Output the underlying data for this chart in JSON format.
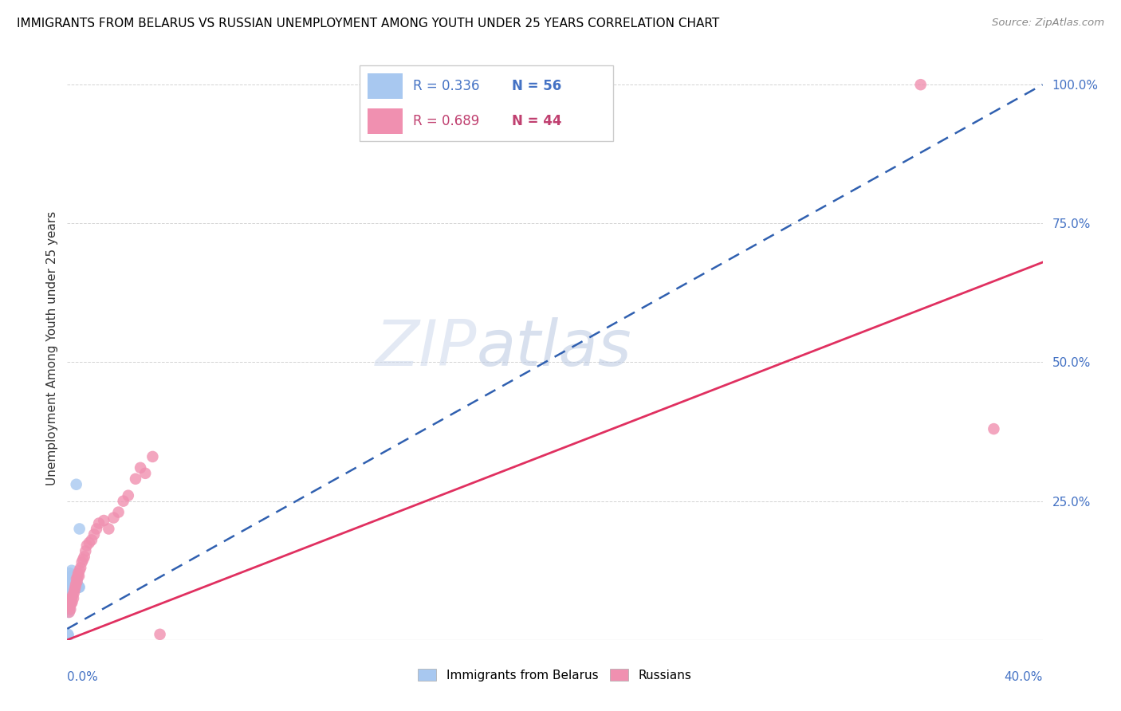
{
  "title": "IMMIGRANTS FROM BELARUS VS RUSSIAN UNEMPLOYMENT AMONG YOUTH UNDER 25 YEARS CORRELATION CHART",
  "source": "Source: ZipAtlas.com",
  "ylabel": "Unemployment Among Youth under 25 years",
  "legend_blue_R": "R = 0.336",
  "legend_blue_N": "N = 56",
  "legend_pink_R": "R = 0.689",
  "legend_pink_N": "N = 44",
  "watermark_zip": "ZIP",
  "watermark_atlas": "atlas",
  "series_blue": {
    "name": "Immigrants from Belarus",
    "color": "#a8c8f0",
    "line_color": "#3060b0",
    "x": [
      0.0008,
      0.001,
      0.001,
      0.0012,
      0.0013,
      0.0015,
      0.0016,
      0.0017,
      0.0018,
      0.0018,
      0.002,
      0.002,
      0.0021,
      0.0022,
      0.0022,
      0.0024,
      0.0024,
      0.0025,
      0.0026,
      0.0027,
      0.0028,
      0.0028,
      0.003,
      0.003,
      0.0031,
      0.0032,
      0.0033,
      0.0034,
      0.0035,
      0.0036,
      0.0037,
      0.0038,
      0.004,
      0.004,
      0.0042,
      0.0043,
      0.0045,
      0.0046,
      0.0048,
      0.005,
      0.0005,
      0.0006,
      0.0007,
      0.0007,
      0.0008,
      0.0009,
      0.0009,
      0.001,
      0.0011,
      0.0012,
      0.0013,
      0.0014,
      0.0003,
      0.0004,
      0.0037,
      0.005
    ],
    "y": [
      0.08,
      0.1,
      0.12,
      0.095,
      0.105,
      0.115,
      0.09,
      0.1,
      0.11,
      0.125,
      0.095,
      0.108,
      0.112,
      0.1,
      0.115,
      0.095,
      0.108,
      0.105,
      0.098,
      0.11,
      0.095,
      0.105,
      0.095,
      0.108,
      0.1,
      0.098,
      0.1,
      0.1,
      0.095,
      0.1,
      0.095,
      0.1,
      0.095,
      0.108,
      0.095,
      0.098,
      0.095,
      0.095,
      0.095,
      0.095,
      0.05,
      0.055,
      0.06,
      0.068,
      0.058,
      0.062,
      0.065,
      0.055,
      0.07,
      0.075,
      0.078,
      0.08,
      0.01,
      0.008,
      0.28,
      0.2
    ]
  },
  "series_pink": {
    "name": "Russians",
    "color": "#f090b0",
    "line_color": "#e03060",
    "x": [
      0.0008,
      0.001,
      0.0013,
      0.0015,
      0.0016,
      0.0018,
      0.002,
      0.0022,
      0.0025,
      0.0028,
      0.003,
      0.0033,
      0.0035,
      0.0038,
      0.004,
      0.0043,
      0.0045,
      0.0048,
      0.005,
      0.0055,
      0.006,
      0.0065,
      0.007,
      0.0075,
      0.008,
      0.009,
      0.01,
      0.011,
      0.012,
      0.013,
      0.015,
      0.017,
      0.019,
      0.021,
      0.023,
      0.025,
      0.028,
      0.03,
      0.032,
      0.035,
      0.038,
      0.19,
      0.35,
      0.38
    ],
    "y": [
      0.05,
      0.06,
      0.055,
      0.07,
      0.065,
      0.075,
      0.068,
      0.08,
      0.075,
      0.085,
      0.09,
      0.095,
      0.1,
      0.11,
      0.105,
      0.115,
      0.12,
      0.115,
      0.125,
      0.13,
      0.14,
      0.145,
      0.15,
      0.16,
      0.17,
      0.175,
      0.18,
      0.19,
      0.2,
      0.21,
      0.215,
      0.2,
      0.22,
      0.23,
      0.25,
      0.26,
      0.29,
      0.31,
      0.3,
      0.33,
      0.01,
      1.0,
      1.0,
      0.38
    ]
  },
  "blue_trend": [
    0.0,
    0.4,
    0.02,
    1.0
  ],
  "pink_trend": [
    0.0,
    0.4,
    0.0,
    0.68
  ],
  "xlim": [
    0.0,
    0.4
  ],
  "ylim": [
    0.0,
    1.05
  ],
  "yticks": [
    0.0,
    0.25,
    0.5,
    0.75,
    1.0
  ],
  "ytick_labels": [
    "",
    "25.0%",
    "50.0%",
    "75.0%",
    "100.0%"
  ],
  "xtick_positions": [
    0.0,
    0.05,
    0.1,
    0.15,
    0.2,
    0.25,
    0.3,
    0.35,
    0.4
  ]
}
